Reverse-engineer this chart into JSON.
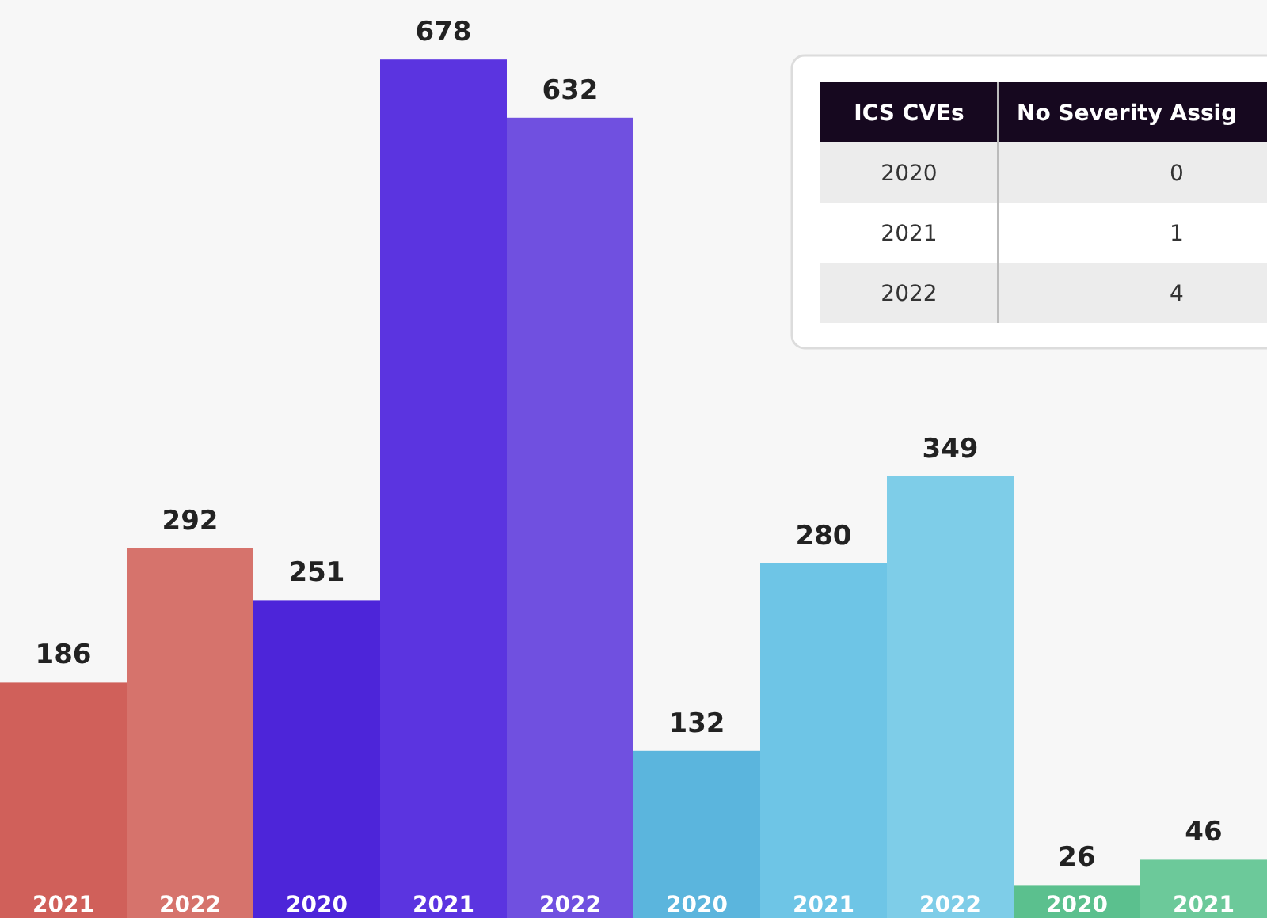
{
  "chart_data": [
    {
      "type": "bar",
      "categories": [
        "2021",
        "2022",
        "2020",
        "2021",
        "2022",
        "2020",
        "2021",
        "2022",
        "2020",
        "2021"
      ],
      "values": [
        186,
        292,
        251,
        678,
        632,
        132,
        280,
        349,
        26,
        46
      ],
      "colors": [
        "#d0605a",
        "#d6736c",
        "#4d25d9",
        "#5b34e0",
        "#7050e0",
        "#5bb5dd",
        "#6ec5e6",
        "#7ecde8",
        "#5bc08e",
        "#6cc99a"
      ],
      "data_labels": true
    },
    {
      "type": "other",
      "xlabel": "ICS CVEs",
      "ylabel": "No Severity Assig",
      "categories": [
        "2020",
        "2021",
        "2022"
      ],
      "values": [
        0,
        1,
        4
      ],
      "data_labels": true
    }
  ]
}
